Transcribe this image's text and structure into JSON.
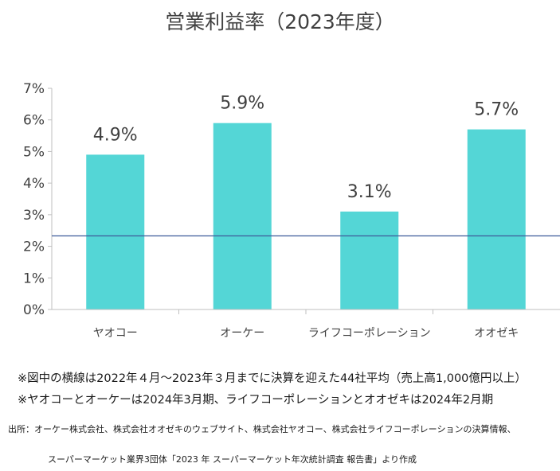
{
  "chart_data": {
    "type": "bar",
    "title": "営業利益率（2023年度）",
    "categories": [
      "ヤオコー",
      "オーケー",
      "ライフコーポレーション",
      "オオゼキ"
    ],
    "values": [
      4.9,
      5.9,
      3.1,
      5.7
    ],
    "data_labels": [
      "4.9%",
      "5.9%",
      "3.1%",
      "5.7%"
    ],
    "ylim": [
      0,
      7
    ],
    "yticks": [
      0,
      1,
      2,
      3,
      4,
      5,
      6,
      7
    ],
    "ytick_labels": [
      "0%",
      "1%",
      "2%",
      "3%",
      "4%",
      "5%",
      "6%",
      "7%"
    ],
    "reference_line": 2.33,
    "bar_color": "#54d6d6",
    "reference_line_color": "#3c5a99",
    "grid": false,
    "xlabel": "",
    "ylabel": ""
  },
  "notes": [
    "※図中の横線は2022年４月～2023年３月までに決算を迎えた44社平均（売上高1,000億円以上）",
    "※ヤオコーとオーケーは2024年3月期、ライフコーポレーションとオオゼキは2024年2月期"
  ],
  "source": {
    "line1": "出所：オーケー株式会社、株式会社オオゼキのウェブサイト、株式会社ヤオコー、株式会社ライフコーポレーションの決算情報、",
    "line2": "スーパーマーケット業界3団体「2023 年 スーパーマーケット年次統計調査 報告書」より作成"
  }
}
